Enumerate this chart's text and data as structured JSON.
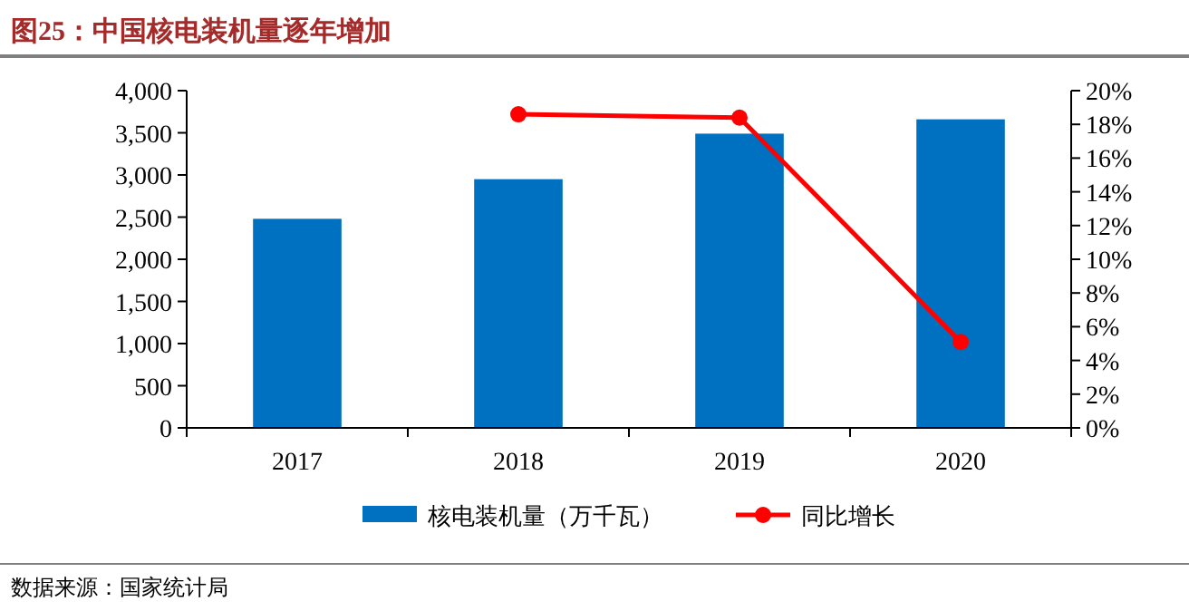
{
  "chart_data": {
    "type": "bar",
    "title": "图25：中国核电装机量逐年增加",
    "categories": [
      "2017",
      "2018",
      "2019",
      "2020"
    ],
    "series": [
      {
        "name": "核电装机量（万千瓦）",
        "color": "#0070c0",
        "values": [
          2480,
          2950,
          3490,
          3660
        ]
      },
      {
        "name": "同比增长",
        "type": "line",
        "axis": "y2",
        "color": "#ff0000",
        "values": [
          null,
          18.6,
          18.4,
          5.1
        ]
      }
    ],
    "ylim": [
      0,
      4000
    ],
    "yticks": [
      {
        "value": 0,
        "label": "0"
      },
      {
        "value": 500,
        "label": "500"
      },
      {
        "value": 1000,
        "label": "1,000"
      },
      {
        "value": 1500,
        "label": "1,500"
      },
      {
        "value": 2000,
        "label": "2,000"
      },
      {
        "value": 2500,
        "label": "2,500"
      },
      {
        "value": 3000,
        "label": "3,000"
      },
      {
        "value": 3500,
        "label": "3,500"
      },
      {
        "value": 4000,
        "label": "4,000"
      }
    ],
    "y2lim": [
      0,
      20
    ],
    "y2ticks": [
      {
        "value": 0,
        "label": "0%"
      },
      {
        "value": 2,
        "label": "2%"
      },
      {
        "value": 4,
        "label": "4%"
      },
      {
        "value": 6,
        "label": "6%"
      },
      {
        "value": 8,
        "label": "8%"
      },
      {
        "value": 10,
        "label": "10%"
      },
      {
        "value": 12,
        "label": "12%"
      },
      {
        "value": 14,
        "label": "14%"
      },
      {
        "value": 16,
        "label": "16%"
      },
      {
        "value": 18,
        "label": "18%"
      },
      {
        "value": 20,
        "label": "20%"
      }
    ],
    "marker": "circle",
    "grid": false,
    "legend": "bottom",
    "annotations": [
      "数据来源：国家统计局"
    ]
  }
}
